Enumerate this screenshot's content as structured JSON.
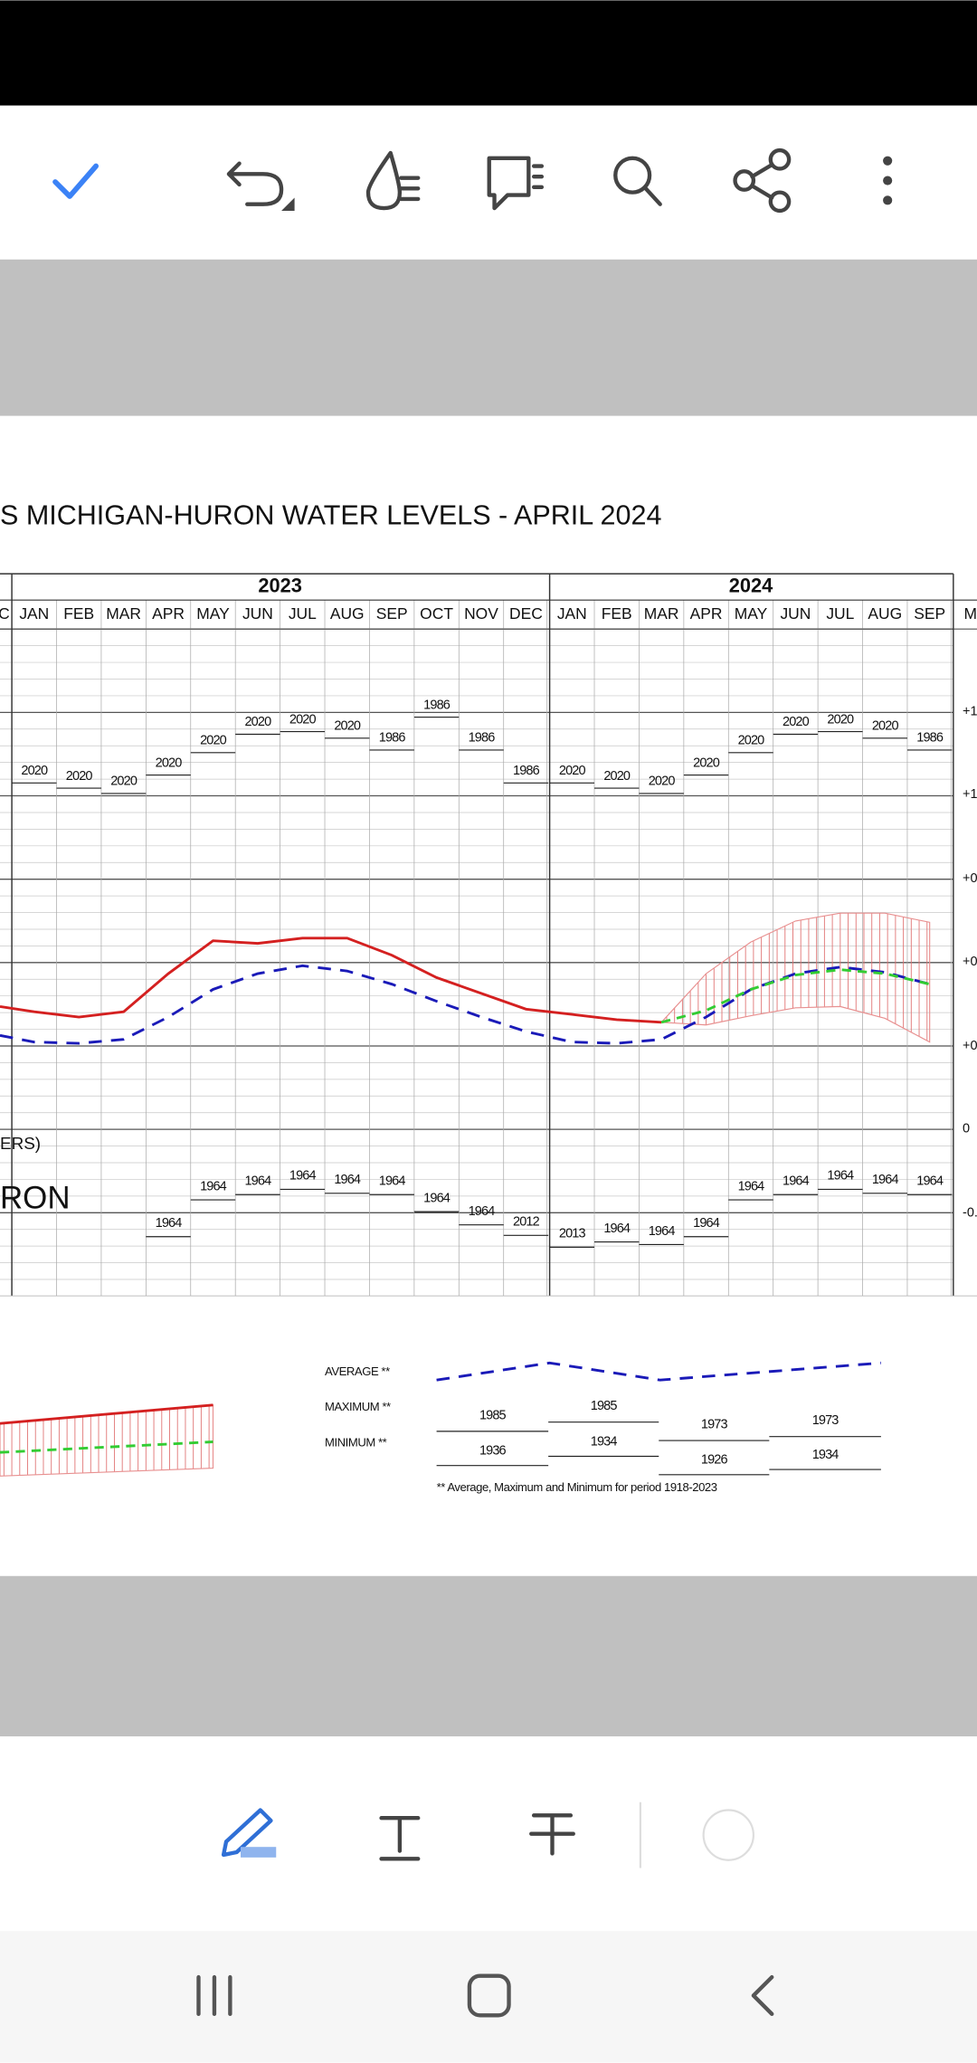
{
  "document": {
    "title": "S MICHIGAN-HURON WATER LEVELS - APRIL 2024",
    "years": [
      "2023",
      "2024"
    ],
    "months": [
      "C",
      "JAN",
      "FEB",
      "MAR",
      "APR",
      "MAY",
      "JUN",
      "JUL",
      "AUG",
      "SEP",
      "OCT",
      "NOV",
      "DEC",
      "JAN",
      "FEB",
      "MAR",
      "APR",
      "MAY",
      "JUN",
      "JUL",
      "AUG",
      "SEP",
      "M"
    ],
    "right_axis_labels": [
      "+1",
      "+1",
      "+0",
      "+0",
      "+0",
      "0",
      "-0."
    ],
    "max_records": [
      "2020",
      "2020",
      "2020",
      "2020",
      "2020",
      "2020",
      "2020",
      "2020",
      "1986",
      "1986",
      "1986",
      "1986",
      "2020",
      "2020",
      "2020",
      "2020",
      "2020",
      "2020",
      "2020",
      "2020",
      "1986"
    ],
    "min_records": [
      "1964",
      "1964",
      "1964",
      "1964",
      "1964",
      "1964",
      "1964",
      "1964",
      "2012",
      "2013",
      "1964",
      "1964",
      "1964",
      "1964",
      "1964",
      "1964",
      "1964",
      "1964"
    ],
    "side_labels": [
      "ERS)",
      "RON"
    ],
    "legend": {
      "average": "AVERAGE **",
      "maximum": "MAXIMUM **",
      "minimum": "MINIMUM **",
      "max_years": [
        "1985",
        "1985",
        "1973",
        "1973"
      ],
      "min_years": [
        "1936",
        "1934",
        "1926",
        "1934"
      ],
      "footnote": "** Average, Maximum and Minimum for period 1918-2023"
    }
  }
}
